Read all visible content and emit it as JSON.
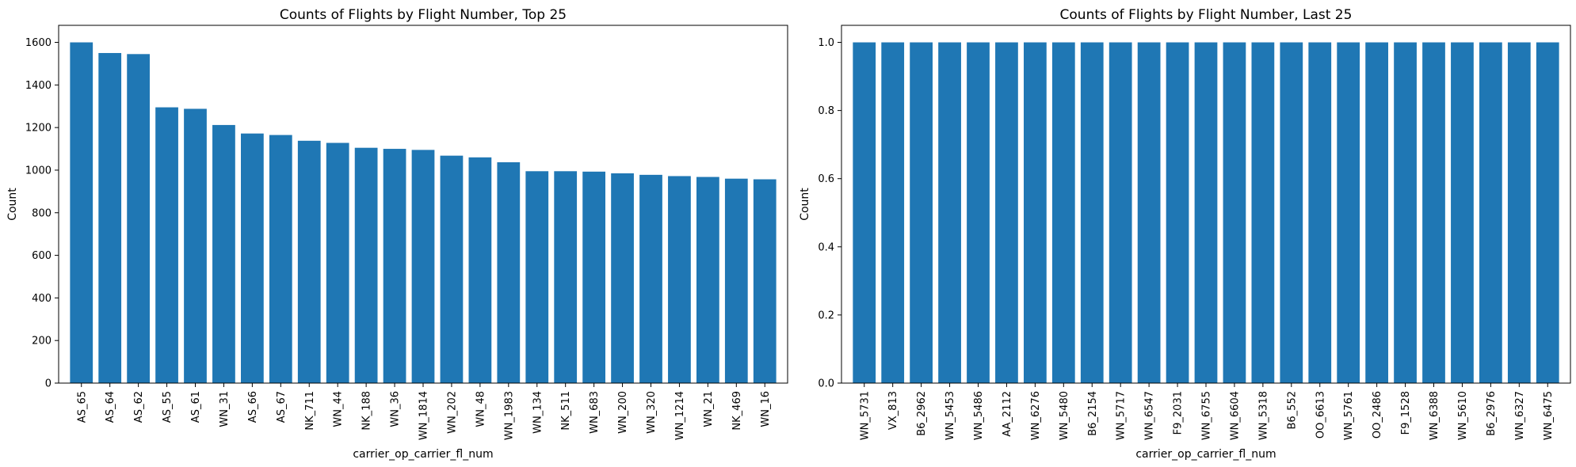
{
  "chart_data": [
    {
      "type": "bar",
      "title": "Counts of Flights by Flight Number, Top 25",
      "xlabel": "carrier_op_carrier_fl_num",
      "ylabel": "Count",
      "ylim": [
        0,
        1680
      ],
      "yticks": [
        0,
        200,
        400,
        600,
        800,
        1000,
        1200,
        1400,
        1600
      ],
      "grid": false,
      "color": "#1f77b4",
      "categories": [
        "AS_65",
        "AS_64",
        "AS_62",
        "AS_55",
        "AS_61",
        "WN_31",
        "AS_66",
        "AS_67",
        "NK_711",
        "WN_44",
        "NK_188",
        "WN_36",
        "WN_1814",
        "WN_202",
        "WN_48",
        "WN_1983",
        "WN_134",
        "NK_511",
        "WN_683",
        "WN_200",
        "WN_320",
        "WN_1214",
        "WN_21",
        "NK_469",
        "WN_16"
      ],
      "values": [
        1600,
        1550,
        1545,
        1295,
        1288,
        1212,
        1172,
        1165,
        1138,
        1128,
        1105,
        1100,
        1095,
        1068,
        1060,
        1037,
        995,
        995,
        993,
        985,
        978,
        972,
        968,
        960,
        957
      ]
    },
    {
      "type": "bar",
      "title": "Counts of Flights by Flight Number, Last 25",
      "xlabel": "carrier_op_carrier_fl_num",
      "ylabel": "Count",
      "ylim": [
        0,
        1.05
      ],
      "yticks": [
        0.0,
        0.2,
        0.4,
        0.6,
        0.8,
        1.0
      ],
      "grid": false,
      "color": "#1f77b4",
      "categories": [
        "WN_5731",
        "VX_813",
        "B6_2962",
        "WN_5453",
        "WN_5486",
        "AA_2112",
        "WN_6276",
        "WN_5480",
        "B6_2154",
        "WN_5717",
        "WN_6547",
        "F9_2031",
        "WN_6755",
        "WN_6604",
        "WN_5318",
        "B6_552",
        "OO_6613",
        "WN_5761",
        "OO_2486",
        "F9_1528",
        "WN_6388",
        "WN_5610",
        "B6_2976",
        "WN_6327",
        "WN_6475"
      ],
      "values": [
        1,
        1,
        1,
        1,
        1,
        1,
        1,
        1,
        1,
        1,
        1,
        1,
        1,
        1,
        1,
        1,
        1,
        1,
        1,
        1,
        1,
        1,
        1,
        1,
        1
      ]
    }
  ]
}
